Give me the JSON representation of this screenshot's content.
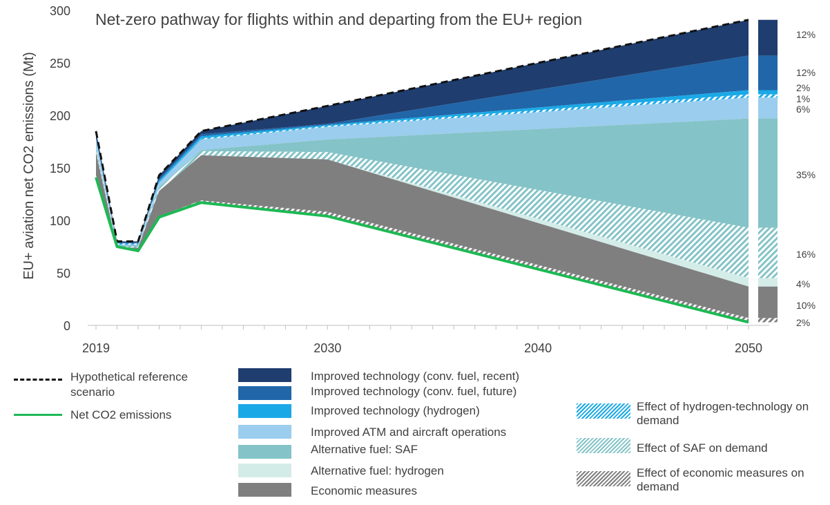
{
  "chart_data": {
    "type": "area",
    "title": "Net-zero pathway for flights within and departing from the EU+ region",
    "ylabel": "EU+ aviation net CO2 emissions (Mt)",
    "xlabel": "",
    "xlim": [
      2019,
      2050
    ],
    "ylim": [
      0,
      300
    ],
    "x_ticks": [
      "2019",
      "2030",
      "2040",
      "2050"
    ],
    "y_ticks": [
      "0",
      "50",
      "100",
      "150",
      "200",
      "250",
      "300"
    ],
    "x": [
      2019,
      2020,
      2021,
      2022,
      2024,
      2030,
      2050
    ],
    "boundaries": [
      {
        "key": "ref",
        "values": [
          185,
          80,
          80,
          143,
          185,
          209,
          291
        ]
      },
      {
        "key": "tech_recent",
        "values": [
          180,
          79,
          79,
          140,
          182,
          192,
          257
        ]
      },
      {
        "key": "tech_future",
        "values": [
          178,
          78,
          78,
          138,
          180,
          191,
          224
        ]
      },
      {
        "key": "tech_h2",
        "values": [
          177,
          78,
          78,
          137,
          178,
          190,
          220
        ]
      },
      {
        "key": "h2_demand",
        "values": [
          176,
          77,
          77,
          136,
          177,
          189,
          217
        ]
      },
      {
        "key": "atm",
        "values": [
          170,
          76,
          76,
          132,
          167,
          177,
          197
        ]
      },
      {
        "key": "saf",
        "values": [
          169,
          75,
          75,
          131,
          166,
          165,
          93
        ]
      },
      {
        "key": "saf_demand",
        "values": [
          166,
          74,
          74,
          128,
          162,
          158,
          45
        ]
      },
      {
        "key": "hydrogen",
        "values": [
          165,
          74,
          74,
          128,
          162,
          158,
          37
        ]
      },
      {
        "key": "econ",
        "values": [
          143,
          76,
          72,
          104,
          119,
          108,
          7
        ]
      },
      {
        "key": "econ_demand",
        "values": [
          141,
          75,
          71,
          103,
          117,
          104,
          3
        ]
      }
    ],
    "series": [
      {
        "name": "Improved technology (conv. fuel, recent)",
        "color": "#1f3d6e",
        "pattern": false,
        "share": "12%"
      },
      {
        "name": "Improved technology (conv. fuel, future)",
        "color": "#2166a8",
        "pattern": false,
        "share": "12%"
      },
      {
        "name": "Improved technology (hydrogen)",
        "color": "#1aa9e6",
        "pattern": false,
        "share": "2%"
      },
      {
        "name": "Effect of hydrogen-technology on demand",
        "color": "#1aa9e6",
        "pattern": true,
        "share": "1%"
      },
      {
        "name": "Improved ATM and aircraft operations",
        "color": "#9bcdee",
        "pattern": false,
        "share": "6%"
      },
      {
        "name": "Alternative fuel: SAF",
        "color": "#84c3c7",
        "pattern": false,
        "share": "35%"
      },
      {
        "name": "Effect of SAF on demand",
        "color": "#84c3c7",
        "pattern": true,
        "share": "16%"
      },
      {
        "name": "Alternative fuel: hydrogen",
        "color": "#d4ece8",
        "pattern": false,
        "share": "4%"
      },
      {
        "name": "Economic measures",
        "color": "#7f7f7f",
        "pattern": false,
        "share": "10%"
      },
      {
        "name": "Effect of economic measures on demand",
        "color": "#7f7f7f",
        "pattern": true,
        "share": "2%"
      }
    ],
    "lines": [
      {
        "name": "Hypothetical reference scenario",
        "style": "dashed",
        "color": "#111111",
        "boundary": "ref"
      },
      {
        "name": "Net CO2 emissions",
        "style": "solid",
        "color": "#1db954",
        "boundary": "econ_demand"
      }
    ]
  },
  "legend": {
    "ref_line_label": "Hypothetical reference scenario",
    "net_line_label": "Net CO2 emissions",
    "tech_recent": "Improved technology (conv. fuel, recent)",
    "tech_future": "Improved technology (conv. fuel, future)",
    "tech_h2": "Improved technology (hydrogen)",
    "atm": "Improved ATM and aircraft operations",
    "saf": "Alternative fuel: SAF",
    "hydrogen": "Alternative fuel: hydrogen",
    "econ": "Economic measures",
    "h2_demand": "Effect of hydrogen-technology on demand",
    "saf_demand": "Effect of SAF on demand",
    "econ_demand": "Effect of economic measures on demand"
  }
}
